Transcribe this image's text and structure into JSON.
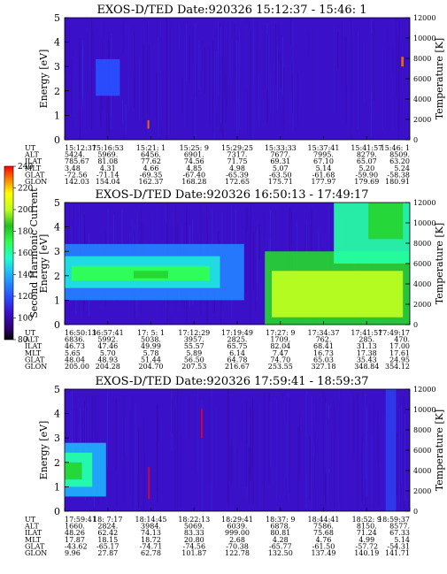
{
  "chart_data": [
    {
      "type": "heatmap",
      "title": "EXOS-D/TED   Date:920326  15:12:37 - 15:46: 1",
      "ylabel": "Energy [eV]",
      "y2label": "Temperature [K]",
      "ylim": [
        0,
        5
      ],
      "y2lim": [
        0,
        12000
      ],
      "yticks": [
        "0",
        "1",
        "2",
        "3",
        "4",
        "5"
      ],
      "y2ticks": [
        "0",
        "2000",
        "4000",
        "6000",
        "8000",
        "10000",
        "12000"
      ],
      "features": [
        {
          "x0": 0.09,
          "x1": 0.16,
          "y0": 1.8,
          "y1": 3.3,
          "level": 120
        },
        {
          "x0": 0.24,
          "x1": 0.245,
          "y0": 0.45,
          "y1": 0.8,
          "level": 230
        },
        {
          "x0": 0.975,
          "x1": 0.982,
          "y0": 3.0,
          "y1": 3.4,
          "level": 230
        }
      ],
      "ephemeris": {
        "rows": [
          {
            "label": "UT",
            "values": [
              "15:12:37",
              "15:16:53",
              "15:21: 1",
              "15:25: 9",
              "15:29:25",
              "15:33:33",
              "15:37:41",
              "15:41:57",
              "15:46: 1"
            ]
          },
          {
            "label": "ALT",
            "values": [
              "5424.",
              "5969.",
              "6456.",
              "6901.",
              "7317.",
              "7677.",
              "7995.",
              "8279.",
              "8509."
            ]
          },
          {
            "label": "ILAT",
            "values": [
              "785.67",
              "81.08",
              "77.62",
              "74.56",
              "71.75",
              "69.31",
              "67.10",
              "65.07",
              "63.20"
            ]
          },
          {
            "label": "MLT",
            "values": [
              "3.48",
              "4.31",
              "4.66",
              "4.85",
              "4.98",
              "5.07",
              "5.14",
              "5.20",
              "5.24"
            ]
          },
          {
            "label": "GLAT",
            "values": [
              "-72.56",
              "-71.14",
              "-69.35",
              "-67.40",
              "-65.39",
              "-63.50",
              "-61.68",
              "-59.90",
              "-58.38"
            ]
          },
          {
            "label": "GLON",
            "values": [
              "142.03",
              "154.04",
              "162.37",
              "168.28",
              "172.65",
              "175.71",
              "177.97",
              "179.69",
              "180.91"
            ]
          }
        ]
      }
    },
    {
      "type": "heatmap",
      "title": "EXOS-D/TED   Date:920326  16:50:13 - 17:49:17",
      "ylabel": "Energy [eV]",
      "y2label": "Temperature [K]",
      "ylim": [
        0,
        5
      ],
      "y2lim": [
        0,
        12000
      ],
      "yticks": [
        "0",
        "1",
        "2",
        "3",
        "4",
        "5"
      ],
      "y2ticks": [
        "0",
        "2000",
        "4000",
        "6000",
        "8000",
        "10000",
        "12000"
      ],
      "features": [
        {
          "x0": 0.0,
          "x1": 0.52,
          "y0": 1.0,
          "y1": 3.3,
          "level": 130
        },
        {
          "x0": 0.0,
          "x1": 0.45,
          "y0": 1.5,
          "y1": 2.8,
          "level": 150
        },
        {
          "x0": 0.02,
          "x1": 0.42,
          "y0": 1.8,
          "y1": 2.4,
          "level": 170
        },
        {
          "x0": 0.2,
          "x1": 0.3,
          "y0": 1.9,
          "y1": 2.2,
          "level": 180
        },
        {
          "x0": 0.58,
          "x1": 1.0,
          "y0": 0.0,
          "y1": 3.0,
          "level": 180
        },
        {
          "x0": 0.6,
          "x1": 0.98,
          "y0": 0.3,
          "y1": 2.2,
          "level": 200
        },
        {
          "x0": 0.78,
          "x1": 1.0,
          "y0": 2.5,
          "y1": 5.0,
          "level": 160
        },
        {
          "x0": 0.88,
          "x1": 0.98,
          "y0": 3.5,
          "y1": 5.0,
          "level": 180
        }
      ],
      "ephemeris": {
        "rows": [
          {
            "label": "UT",
            "values": [
              "16:50:13",
              "16:57:41",
              "17: 5: 1",
              "17:12:29",
              "17:19:49",
              "17:27: 9",
              "17:34:37",
              "17:41:57",
              "17:49:17"
            ]
          },
          {
            "label": "ALT",
            "values": [
              "6836.",
              "5992.",
              "5038.",
              "3957.",
              "2825.",
              "1709.",
              "762.",
              "285.",
              "470."
            ]
          },
          {
            "label": "ILAT",
            "values": [
              "46.73",
              "47.46",
              "49.99",
              "55.57",
              "65.75",
              "82.04",
              "68.41",
              "31.13",
              "17.00"
            ]
          },
          {
            "label": "MLT",
            "values": [
              "5.65",
              "5.70",
              "5.78",
              "5.89",
              "6.14",
              "7.47",
              "16.73",
              "17.38",
              "17.61"
            ]
          },
          {
            "label": "GLAT",
            "values": [
              "48.04",
              "48.93",
              "51.44",
              "56.50",
              "64.78",
              "74.70",
              "65.03",
              "35.43",
              "24.95"
            ]
          },
          {
            "label": "GLON",
            "values": [
              "205.00",
              "204.28",
              "204.70",
              "207.53",
              "216.67",
              "253.55",
              "327.18",
              "348.84",
              "354.12"
            ]
          }
        ]
      }
    },
    {
      "type": "heatmap",
      "title": "EXOS-D/TED   Date:920326  17:59:41 - 18:59:37",
      "ylabel": "Energy [eV]",
      "y2label": "Temperature [K]",
      "ylim": [
        0,
        5
      ],
      "y2lim": [
        0,
        12000
      ],
      "yticks": [
        "0",
        "1",
        "2",
        "3",
        "4",
        "5"
      ],
      "y2ticks": [
        "0",
        "2000",
        "4000",
        "6000",
        "8000",
        "10000",
        "12000"
      ],
      "features": [
        {
          "x0": 0.0,
          "x1": 0.12,
          "y0": 0.6,
          "y1": 2.8,
          "level": 140
        },
        {
          "x0": 0.0,
          "x1": 0.08,
          "y0": 1.0,
          "y1": 2.4,
          "level": 160
        },
        {
          "x0": 0.0,
          "x1": 0.05,
          "y0": 1.3,
          "y1": 2.0,
          "level": 180
        },
        {
          "x0": 0.395,
          "x1": 0.399,
          "y0": 3.0,
          "y1": 4.2,
          "level": 240
        },
        {
          "x0": 0.242,
          "x1": 0.246,
          "y0": 0.5,
          "y1": 1.8,
          "level": 240
        },
        {
          "x0": 0.93,
          "x1": 0.96,
          "y0": 0.0,
          "y1": 5.0,
          "level": 115
        }
      ],
      "ephemeris": {
        "rows": [
          {
            "label": "UT",
            "values": [
              "17:59:41",
              "18: 7:17",
              "18:14:45",
              "18:22:13",
              "18:29:41",
              "18:37: 9",
              "18:44:41",
              "18:52: 9",
              "18:59:37"
            ]
          },
          {
            "label": "ALT",
            "values": [
              "1660.",
              "2824.",
              "3984.",
              "5069.",
              "6039.",
              "6878.",
              "7586.",
              "8150.",
              "8577."
            ]
          },
          {
            "label": "ILAT",
            "values": [
              "48.26",
              "62.42",
              "74.13",
              "83.33",
              "999.00",
              "80.81",
              "75.68",
              "71.24",
              "67.33"
            ]
          },
          {
            "label": "MLT",
            "values": [
              "17.87",
              "18.15",
              "18.72",
              "20.80",
              "2.68",
              "4.28",
              "4.76",
              "4.99",
              "5.14"
            ]
          },
          {
            "label": "GLAT",
            "values": [
              "-43.62",
              "-65.17",
              "-74.71",
              "-74.56",
              "-70.38",
              "-65.77",
              "-61.50",
              "-57.72",
              "-54.31"
            ]
          },
          {
            "label": "GLON",
            "values": [
              "9.96",
              "27.87",
              "62.78",
              "101.87",
              "122.78",
              "132.50",
              "137.49",
              "140.19",
              "141.71"
            ]
          }
        ]
      }
    }
  ],
  "colorbar": {
    "label": "Second Harmonic Current",
    "range": [
      80,
      240
    ],
    "ticks": [
      "80",
      "100",
      "120",
      "140",
      "160",
      "180",
      "200",
      "220",
      "240"
    ],
    "stops": [
      {
        "v": 80,
        "color": "#000000"
      },
      {
        "v": 90,
        "color": "#300070"
      },
      {
        "v": 105,
        "color": "#3a10c8"
      },
      {
        "v": 120,
        "color": "#2850ff"
      },
      {
        "v": 140,
        "color": "#20b0ff"
      },
      {
        "v": 155,
        "color": "#20ffd0"
      },
      {
        "v": 170,
        "color": "#30ff50"
      },
      {
        "v": 185,
        "color": "#20c020"
      },
      {
        "v": 200,
        "color": "#c0ff20"
      },
      {
        "v": 215,
        "color": "#ffff00"
      },
      {
        "v": 228,
        "color": "#ff8000"
      },
      {
        "v": 240,
        "color": "#ff0000"
      }
    ]
  },
  "background_level": 105
}
